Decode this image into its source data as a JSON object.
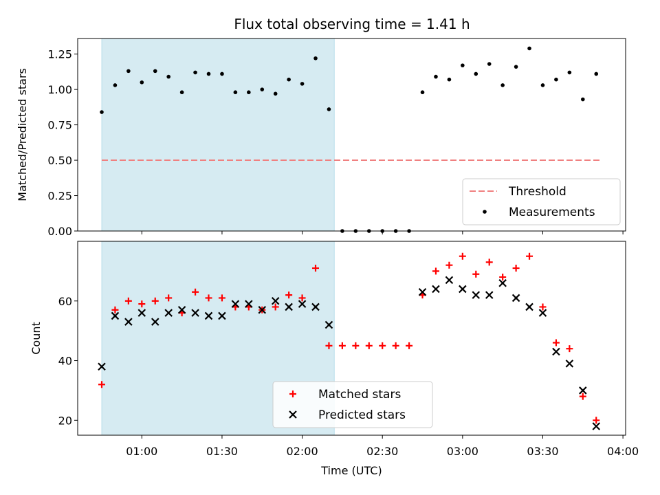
{
  "chart_data": [
    {
      "type": "scatter",
      "panel": "top",
      "title": "Flux total observing time = 1.41 h",
      "ylabel": "Matched/Predicted stars",
      "xlabel": "",
      "ylim": [
        0,
        1.36
      ],
      "yticks": [
        "0.00",
        "0.25",
        "0.50",
        "0.75",
        "1.00",
        "1.25"
      ],
      "ytick_values": [
        0,
        0.25,
        0.5,
        0.75,
        1.0,
        1.25
      ],
      "shaded_region": {
        "x_start": "00:45",
        "x_end": "02:12",
        "color": "#add8e6"
      },
      "threshold": {
        "name": "Threshold",
        "value": 0.5,
        "x_start": "00:45",
        "x_end": "03:52",
        "color": "#f08080"
      },
      "series": [
        {
          "name": "Measurements",
          "color": "#000000",
          "x": [
            "00:45",
            "00:50",
            "00:55",
            "01:00",
            "01:05",
            "01:10",
            "01:15",
            "01:20",
            "01:25",
            "01:30",
            "01:35",
            "01:40",
            "01:45",
            "01:50",
            "01:55",
            "02:00",
            "02:05",
            "02:10",
            "02:15",
            "02:20",
            "02:25",
            "02:30",
            "02:35",
            "02:40",
            "02:45",
            "02:50",
            "02:55",
            "03:00",
            "03:05",
            "03:10",
            "03:15",
            "03:20",
            "03:25",
            "03:30",
            "03:35",
            "03:40",
            "03:45",
            "03:50"
          ],
          "y": [
            0.84,
            1.03,
            1.13,
            1.05,
            1.13,
            1.09,
            0.98,
            1.12,
            1.11,
            1.11,
            0.98,
            0.98,
            1.0,
            0.97,
            1.07,
            1.04,
            1.22,
            0.86,
            0.0,
            0.0,
            0.0,
            0.0,
            0.0,
            0.0,
            0.98,
            1.09,
            1.07,
            1.17,
            1.11,
            1.18,
            1.03,
            1.16,
            1.29,
            1.03,
            1.07,
            1.12,
            0.93,
            1.11
          ]
        }
      ],
      "legend": {
        "position": "lower-right",
        "entries": [
          "Threshold",
          "Measurements"
        ]
      }
    },
    {
      "type": "scatter",
      "panel": "bottom",
      "xlabel": "Time (UTC)",
      "ylabel": "Count",
      "ylim": [
        15,
        80
      ],
      "yticks": [
        "20",
        "40",
        "60"
      ],
      "ytick_values": [
        20,
        40,
        60
      ],
      "xticks": [
        "01:00",
        "01:30",
        "02:00",
        "02:30",
        "03:00",
        "03:30",
        "04:00"
      ],
      "xtick_values": [
        "01:00",
        "01:30",
        "02:00",
        "02:30",
        "03:00",
        "03:30",
        "04:00"
      ],
      "xlim": [
        "00:36",
        "04:01"
      ],
      "shaded_region": {
        "x_start": "00:45",
        "x_end": "02:12",
        "color": "#add8e6"
      },
      "series": [
        {
          "name": "Matched stars",
          "marker": "plus",
          "color": "#ff0000",
          "x": [
            "00:45",
            "00:50",
            "00:55",
            "01:00",
            "01:05",
            "01:10",
            "01:15",
            "01:20",
            "01:25",
            "01:30",
            "01:35",
            "01:40",
            "01:45",
            "01:50",
            "01:55",
            "02:00",
            "02:05",
            "02:10",
            "02:15",
            "02:20",
            "02:25",
            "02:30",
            "02:35",
            "02:40",
            "02:45",
            "02:50",
            "02:55",
            "03:00",
            "03:05",
            "03:10",
            "03:15",
            "03:20",
            "03:25",
            "03:30",
            "03:35",
            "03:40",
            "03:45",
            "03:50"
          ],
          "y": [
            32,
            57,
            60,
            59,
            60,
            61,
            56,
            63,
            61,
            61,
            58,
            58,
            57,
            58,
            62,
            61,
            71,
            45,
            45,
            45,
            45,
            45,
            45,
            45,
            62,
            70,
            72,
            75,
            69,
            73,
            68,
            71,
            75,
            58,
            46,
            44,
            28,
            20
          ]
        },
        {
          "name": "Predicted stars",
          "marker": "x",
          "color": "#000000",
          "x": [
            "00:45",
            "00:50",
            "00:55",
            "01:00",
            "01:05",
            "01:10",
            "01:15",
            "01:20",
            "01:25",
            "01:30",
            "01:35",
            "01:40",
            "01:45",
            "01:50",
            "01:55",
            "02:00",
            "02:05",
            "02:10",
            "02:45",
            "02:50",
            "02:55",
            "03:00",
            "03:05",
            "03:10",
            "03:15",
            "03:20",
            "03:25",
            "03:30",
            "03:35",
            "03:40",
            "03:45",
            "03:50"
          ],
          "y": [
            38,
            55,
            53,
            56,
            53,
            56,
            57,
            56,
            55,
            55,
            59,
            59,
            57,
            60,
            58,
            59,
            58,
            52,
            63,
            64,
            67,
            64,
            62,
            62,
            66,
            61,
            58,
            56,
            43,
            39,
            30,
            18
          ]
        }
      ],
      "legend": {
        "position": "lower-center",
        "entries": [
          "Matched stars",
          "Predicted stars"
        ]
      }
    }
  ]
}
